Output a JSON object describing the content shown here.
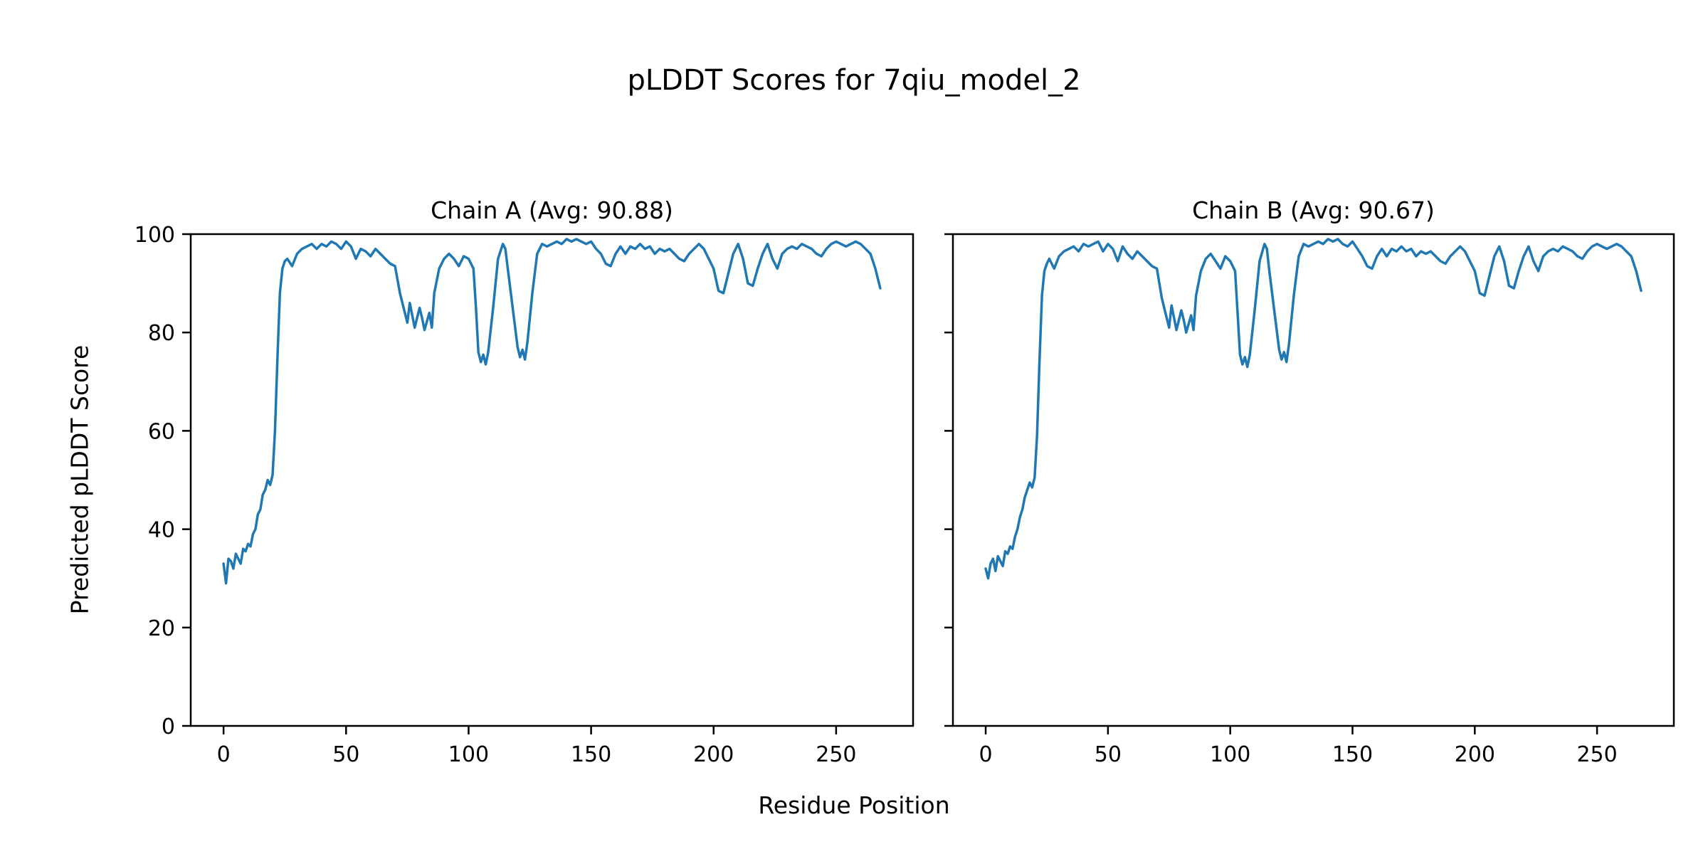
{
  "title": "pLDDT Scores for 7qiu_model_2",
  "xlabel": "Residue Position",
  "ylabel": "Predicted pLDDT Score",
  "chart_data": {
    "type": "line",
    "line_color": "#1f77b4",
    "grid": false,
    "legend": "none",
    "xlim": [
      -13.4,
      281.4
    ],
    "ylim": [
      0,
      100
    ],
    "x_ticks": [
      0,
      50,
      100,
      150,
      200,
      250
    ],
    "y_ticks": [
      0,
      20,
      40,
      60,
      80,
      100
    ],
    "x": [
      0,
      1,
      2,
      3,
      4,
      5,
      6,
      7,
      8,
      9,
      10,
      11,
      12,
      13,
      14,
      15,
      16,
      17,
      18,
      19,
      20,
      21,
      22,
      23,
      24,
      25,
      26,
      28,
      30,
      32,
      34,
      36,
      38,
      40,
      42,
      44,
      46,
      48,
      50,
      52,
      54,
      56,
      58,
      60,
      62,
      64,
      66,
      68,
      70,
      72,
      74,
      75,
      76,
      78,
      80,
      81,
      82,
      84,
      85,
      86,
      88,
      90,
      92,
      94,
      96,
      98,
      100,
      102,
      103,
      104,
      105,
      106,
      107,
      108,
      110,
      112,
      114,
      115,
      116,
      118,
      120,
      121,
      122,
      123,
      124,
      126,
      128,
      130,
      132,
      134,
      136,
      138,
      140,
      142,
      144,
      146,
      148,
      150,
      152,
      154,
      156,
      158,
      160,
      162,
      164,
      166,
      168,
      170,
      172,
      174,
      176,
      178,
      180,
      182,
      184,
      186,
      188,
      190,
      192,
      194,
      196,
      198,
      200,
      202,
      204,
      206,
      208,
      210,
      212,
      214,
      216,
      218,
      220,
      222,
      224,
      226,
      228,
      230,
      232,
      234,
      236,
      238,
      240,
      242,
      244,
      246,
      248,
      250,
      252,
      254,
      256,
      258,
      260,
      262,
      264,
      266,
      267,
      268
    ],
    "subplots": [
      {
        "name": "Chain A",
        "title": "Chain A (Avg: 90.88)",
        "avg": 90.88,
        "y": [
          33,
          29,
          34,
          33.5,
          32,
          35,
          34,
          33,
          36,
          35.5,
          37,
          36.5,
          39,
          40,
          43,
          44,
          47,
          48,
          50,
          49,
          51,
          60,
          75,
          88,
          93,
          94.5,
          95,
          93.5,
          96,
          97,
          97.5,
          98,
          97,
          98,
          97.5,
          98.5,
          98,
          97,
          98.5,
          97.5,
          95,
          97,
          96.5,
          95.5,
          97,
          96,
          95,
          94,
          93.5,
          88,
          84,
          82,
          86,
          81,
          85,
          83,
          80.5,
          84,
          81,
          88,
          93,
          95,
          96,
          95,
          93.5,
          95.5,
          95,
          93,
          85,
          76,
          74,
          75.5,
          73.5,
          76,
          85,
          95,
          98,
          97,
          93,
          85,
          77,
          75,
          76.5,
          74.5,
          78,
          88,
          96,
          98,
          97.5,
          98,
          98.5,
          98,
          99,
          98.5,
          99,
          98.5,
          98,
          98.5,
          97,
          96,
          94,
          93.5,
          96,
          97.5,
          96,
          97.5,
          97,
          98,
          97,
          97.5,
          96,
          97,
          96.5,
          97,
          96,
          95,
          94.5,
          96,
          97,
          98,
          97,
          95,
          93,
          88.5,
          88,
          92,
          96,
          98,
          95,
          90,
          89.5,
          93,
          96,
          98,
          95,
          93,
          96,
          97,
          97.5,
          97,
          98,
          97.5,
          97,
          96,
          95.5,
          97,
          98,
          98.5,
          98,
          97.5,
          98,
          98.5,
          98,
          97,
          96,
          93,
          91,
          89
        ]
      },
      {
        "name": "Chain B",
        "title": "Chain B (Avg: 90.67)",
        "avg": 90.67,
        "y": [
          32,
          30,
          33,
          34,
          31.5,
          34.5,
          33.5,
          32.5,
          35.5,
          35,
          36.5,
          36,
          38.5,
          40,
          42.5,
          44,
          46.5,
          48,
          49.5,
          48.5,
          50.5,
          59,
          74,
          87.5,
          92.5,
          94,
          95,
          93,
          95.5,
          96.5,
          97,
          97.5,
          96.5,
          98,
          97.5,
          98,
          98.5,
          96.5,
          98,
          97,
          94.5,
          97.5,
          96,
          95,
          96.5,
          95.5,
          94.5,
          93.5,
          93,
          87,
          83,
          81,
          85.5,
          80.5,
          84.5,
          82.5,
          80,
          83.5,
          80.5,
          87.5,
          92.5,
          95,
          96,
          94.5,
          93,
          95.5,
          94.5,
          92.5,
          84,
          75.5,
          73.5,
          75,
          73,
          75.5,
          84.5,
          94.5,
          98,
          97,
          92.5,
          84.5,
          76.5,
          74.5,
          76,
          74,
          77.5,
          87.5,
          95.5,
          98,
          97.5,
          98,
          98.5,
          98,
          99,
          98.5,
          99,
          98,
          97.5,
          98.5,
          97,
          95.5,
          93.5,
          93,
          95.5,
          97,
          95.5,
          97,
          96.5,
          97.5,
          96.5,
          97,
          95.5,
          96.5,
          96,
          96.5,
          95.5,
          94.5,
          94,
          95.5,
          96.5,
          97.5,
          96.5,
          94.5,
          92.5,
          88,
          87.5,
          91.5,
          95.5,
          97.5,
          94.5,
          89.5,
          89,
          92.5,
          95.5,
          97.5,
          94.5,
          92.5,
          95.5,
          96.5,
          97,
          96.5,
          97.5,
          97,
          96.5,
          95.5,
          95,
          96.5,
          97.5,
          98,
          97.5,
          97,
          97.5,
          98,
          97.5,
          96.5,
          95.5,
          92.5,
          90.5,
          88.5
        ]
      }
    ]
  }
}
